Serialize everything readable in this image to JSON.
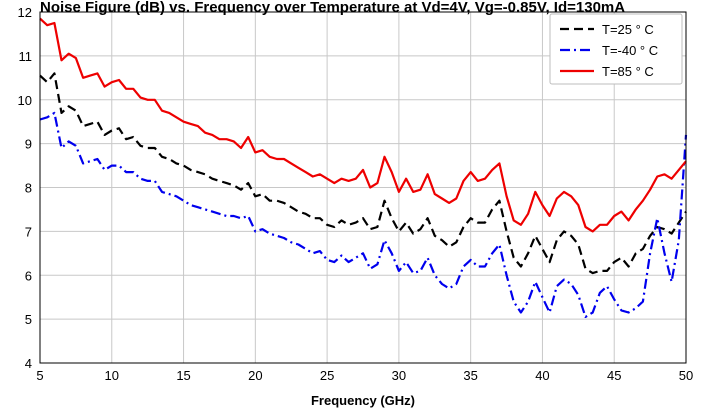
{
  "chart_data": {
    "type": "line",
    "title": "Noise Figure (dB) vs. Frequency over Temperature at Vd=4V, Vg=-0.85V, Id=130mA",
    "xlabel": "Frequency (GHz)",
    "ylabel": "",
    "xlim": [
      5,
      50
    ],
    "ylim": [
      4,
      12
    ],
    "xticks": [
      "5",
      "10",
      "15",
      "20",
      "25",
      "30",
      "35",
      "40",
      "45",
      "50"
    ],
    "yticks": [
      "4",
      "5",
      "6",
      "7",
      "8",
      "9",
      "10",
      "11",
      "12"
    ],
    "grid": true,
    "legend_position": "top-right",
    "series": [
      {
        "name": "T=25 ° C",
        "color": "#000000",
        "style": "dashed",
        "x": [
          5,
          5.5,
          6,
          6.5,
          7,
          7.5,
          8,
          8.5,
          9,
          9.5,
          10,
          10.5,
          11,
          11.5,
          12,
          12.5,
          13,
          13.5,
          14,
          14.5,
          15,
          15.5,
          16,
          16.5,
          17,
          17.5,
          18,
          18.5,
          19,
          19.5,
          20,
          20.5,
          21,
          21.5,
          22,
          22.5,
          23,
          23.5,
          24,
          24.5,
          25,
          25.5,
          26,
          26.5,
          27,
          27.5,
          28,
          28.5,
          29,
          29.5,
          30,
          30.5,
          31,
          31.5,
          32,
          32.5,
          33,
          33.5,
          34,
          34.5,
          35,
          35.5,
          36,
          36.5,
          37,
          37.5,
          38,
          38.5,
          39,
          39.5,
          40,
          40.5,
          41,
          41.5,
          42,
          42.5,
          43,
          43.5,
          44,
          44.5,
          45,
          45.5,
          46,
          46.5,
          47,
          47.5,
          48,
          48.5,
          49,
          49.5,
          50
        ],
        "values": [
          10.55,
          10.4,
          10.6,
          9.7,
          9.85,
          9.75,
          9.4,
          9.45,
          9.5,
          9.2,
          9.3,
          9.35,
          9.1,
          9.15,
          8.95,
          8.9,
          8.9,
          8.7,
          8.65,
          8.55,
          8.5,
          8.4,
          8.35,
          8.3,
          8.2,
          8.15,
          8.1,
          8.05,
          7.95,
          8.1,
          7.8,
          7.85,
          7.7,
          7.7,
          7.65,
          7.55,
          7.45,
          7.4,
          7.3,
          7.3,
          7.15,
          7.1,
          7.25,
          7.15,
          7.2,
          7.3,
          7.05,
          7.1,
          7.7,
          7.3,
          7.0,
          7.2,
          6.95,
          7.05,
          7.3,
          6.9,
          6.8,
          6.65,
          6.75,
          7.1,
          7.3,
          7.2,
          7.2,
          7.5,
          7.7,
          7.0,
          6.4,
          6.2,
          6.5,
          6.9,
          6.6,
          6.3,
          6.8,
          7.0,
          6.9,
          6.7,
          6.15,
          6.05,
          6.1,
          6.1,
          6.3,
          6.4,
          6.2,
          6.5,
          6.6,
          6.9,
          7.1,
          7.05,
          6.95,
          7.2,
          7.45
        ]
      },
      {
        "name": "T=-40 ° C",
        "color": "#0000ee",
        "style": "dashdot",
        "x": [
          5,
          5.5,
          6,
          6.5,
          7,
          7.5,
          8,
          8.5,
          9,
          9.5,
          10,
          10.5,
          11,
          11.5,
          12,
          12.5,
          13,
          13.5,
          14,
          14.5,
          15,
          15.5,
          16,
          16.5,
          17,
          17.5,
          18,
          18.5,
          19,
          19.5,
          20,
          20.5,
          21,
          21.5,
          22,
          22.5,
          23,
          23.5,
          24,
          24.5,
          25,
          25.5,
          26,
          26.5,
          27,
          27.5,
          28,
          28.5,
          29,
          29.5,
          30,
          30.5,
          31,
          31.5,
          32,
          32.5,
          33,
          33.5,
          34,
          34.5,
          35,
          35.5,
          36,
          36.5,
          37,
          37.5,
          38,
          38.5,
          39,
          39.5,
          40,
          40.5,
          41,
          41.5,
          42,
          42.5,
          43,
          43.5,
          44,
          44.5,
          45,
          45.5,
          46,
          46.5,
          47,
          47.5,
          48,
          48.5,
          49,
          49.5,
          50
        ],
        "values": [
          9.55,
          9.6,
          9.7,
          8.9,
          9.05,
          8.95,
          8.55,
          8.6,
          8.65,
          8.4,
          8.5,
          8.5,
          8.35,
          8.35,
          8.2,
          8.15,
          8.15,
          7.9,
          7.85,
          7.8,
          7.7,
          7.6,
          7.55,
          7.5,
          7.45,
          7.4,
          7.35,
          7.35,
          7.3,
          7.35,
          7.0,
          7.05,
          6.95,
          6.9,
          6.85,
          6.75,
          6.7,
          6.6,
          6.5,
          6.55,
          6.35,
          6.3,
          6.45,
          6.3,
          6.4,
          6.5,
          6.15,
          6.25,
          6.8,
          6.5,
          6.1,
          6.3,
          6.05,
          6.1,
          6.4,
          6.0,
          5.8,
          5.7,
          5.8,
          6.2,
          6.35,
          6.2,
          6.2,
          6.5,
          6.7,
          6.0,
          5.4,
          5.15,
          5.4,
          5.85,
          5.5,
          5.15,
          5.75,
          5.9,
          5.8,
          5.55,
          5.05,
          5.15,
          5.6,
          5.75,
          5.45,
          5.2,
          5.15,
          5.25,
          5.4,
          6.5,
          7.3,
          6.5,
          5.85,
          6.8,
          9.2
        ]
      },
      {
        "name": "T=85 ° C",
        "color": "#ee0000",
        "style": "solid",
        "x": [
          5,
          5.5,
          6,
          6.5,
          7,
          7.5,
          8,
          8.5,
          9,
          9.5,
          10,
          10.5,
          11,
          11.5,
          12,
          12.5,
          13,
          13.5,
          14,
          14.5,
          15,
          15.5,
          16,
          16.5,
          17,
          17.5,
          18,
          18.5,
          19,
          19.5,
          20,
          20.5,
          21,
          21.5,
          22,
          22.5,
          23,
          23.5,
          24,
          24.5,
          25,
          25.5,
          26,
          26.5,
          27,
          27.5,
          28,
          28.5,
          29,
          29.5,
          30,
          30.5,
          31,
          31.5,
          32,
          32.5,
          33,
          33.5,
          34,
          34.5,
          35,
          35.5,
          36,
          36.5,
          37,
          37.5,
          38,
          38.5,
          39,
          39.5,
          40,
          40.5,
          41,
          41.5,
          42,
          42.5,
          43,
          43.5,
          44,
          44.5,
          45,
          45.5,
          46,
          46.5,
          47,
          47.5,
          48,
          48.5,
          49,
          49.5,
          50
        ],
        "values": [
          11.85,
          11.7,
          11.75,
          10.9,
          11.05,
          10.95,
          10.5,
          10.55,
          10.6,
          10.3,
          10.4,
          10.45,
          10.25,
          10.25,
          10.05,
          10.0,
          10.0,
          9.75,
          9.7,
          9.6,
          9.5,
          9.45,
          9.4,
          9.25,
          9.2,
          9.1,
          9.1,
          9.05,
          8.9,
          9.15,
          8.8,
          8.85,
          8.7,
          8.65,
          8.65,
          8.55,
          8.45,
          8.35,
          8.25,
          8.3,
          8.2,
          8.1,
          8.2,
          8.15,
          8.2,
          8.4,
          8.0,
          8.1,
          8.7,
          8.35,
          7.9,
          8.2,
          7.9,
          7.95,
          8.3,
          7.85,
          7.75,
          7.65,
          7.75,
          8.15,
          8.35,
          8.15,
          8.2,
          8.4,
          8.55,
          7.8,
          7.25,
          7.15,
          7.4,
          7.9,
          7.6,
          7.35,
          7.75,
          7.9,
          7.8,
          7.6,
          7.1,
          7.0,
          7.15,
          7.15,
          7.35,
          7.45,
          7.25,
          7.5,
          7.7,
          7.95,
          8.25,
          8.3,
          8.2,
          8.4,
          8.6
        ]
      }
    ]
  }
}
